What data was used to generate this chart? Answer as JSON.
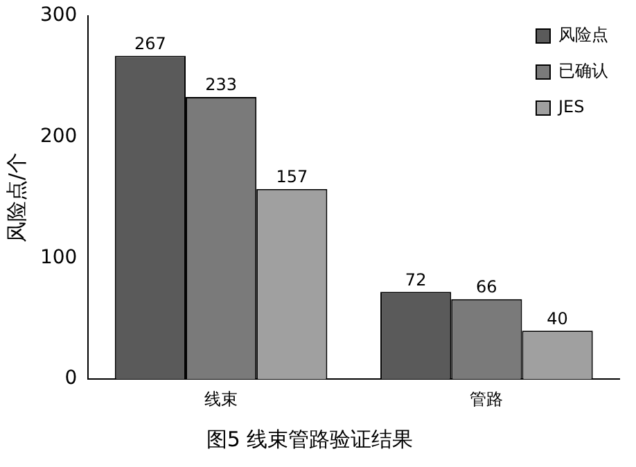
{
  "chart_data": {
    "type": "bar",
    "title": "图5 线束管路验证结果",
    "ylabel": "风险点/个",
    "categories": [
      "线束",
      "管路"
    ],
    "series": [
      {
        "name": "风险点",
        "color": "#5a5a5a",
        "values": [
          267,
          72
        ]
      },
      {
        "name": "已确认",
        "color": "#7a7a7a",
        "values": [
          233,
          66
        ]
      },
      {
        "name": "JES",
        "color": "#a0a0a0",
        "values": [
          157,
          40
        ]
      }
    ],
    "ylim": [
      0,
      300
    ],
    "yticks": [
      0,
      100,
      200,
      300
    ],
    "grid": false,
    "legend": "top right",
    "data_labels": true
  }
}
